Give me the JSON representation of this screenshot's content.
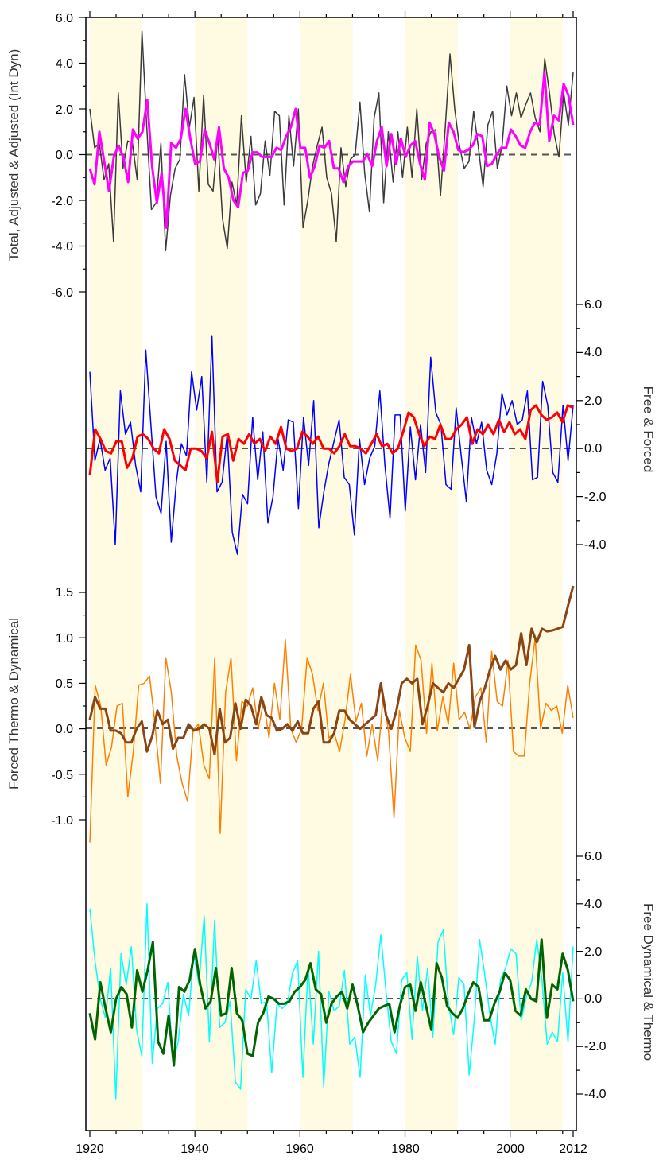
{
  "chart_data": {
    "type": "line",
    "x_ticks": [
      "1920",
      "1940",
      "1960",
      "1980",
      "2000",
      "2012"
    ],
    "x_range": [
      1919,
      2012
    ],
    "shaded_decades": [
      [
        1920,
        1930
      ],
      [
        1940,
        1950
      ],
      [
        1960,
        1970
      ],
      [
        1980,
        1990
      ],
      [
        2000,
        2010
      ]
    ],
    "colors": {
      "shade": "#fffbe3",
      "zero_line": "#555555",
      "total": "#3a3a3a",
      "adjusted": "#ff00ff",
      "free": "#0000ff",
      "forced": "#ff0000",
      "forced_thermo": "#8b4513",
      "forced_dynamical": "#ff8000",
      "free_dynamical": "#00ffff",
      "free_thermo": "#006400"
    },
    "panels": [
      {
        "ylabel": "Total, Adjusted & Adjusted (Int Dyn)",
        "side": "left",
        "ylim": [
          -6.0,
          6.0
        ],
        "tick_labels": [
          "6.0",
          "4.0",
          "2.0",
          "0.0",
          "-2.0",
          "-4.0",
          "-6.0"
        ],
        "series": [
          {
            "key": "total",
            "values": [
              2.0,
              0.3,
              0.5,
              -1.1,
              -0.4,
              -3.8,
              2.7,
              -0.6,
              0.6,
              0.5,
              -1.1,
              5.4,
              1.3,
              -2.4,
              -2.1,
              0.5,
              -4.2,
              -1.8,
              -0.6,
              -0.2,
              3.5,
              1.2,
              2.5,
              -1.6,
              2.6,
              -1.3,
              -1.6,
              0.8,
              -2.8,
              -4.1,
              -1.2,
              -2.2,
              1.7,
              -1.2,
              0.8,
              -2.2,
              -1.7,
              0.6,
              -0.9,
              1.9,
              1.7,
              -2.2,
              1.7,
              -0.5,
              2.0,
              -3.2,
              -2.0,
              -0.5,
              0.4,
              1.2,
              -1.0,
              -1.7,
              -3.8,
              0.3,
              -1.4,
              -0.2,
              0.0,
              2.3,
              -0.8,
              -2.5,
              1.6,
              2.7,
              -2.1,
              1.0,
              -1.2,
              1.0,
              -1.0,
              1.2,
              -1.0,
              2.0,
              -1.1,
              0.5,
              1.0,
              1.1,
              -1.8,
              1.2,
              4.4,
              2.0,
              0.4,
              -0.6,
              -0.3,
              1.9,
              0.3,
              -1.4,
              1.3,
              1.9,
              -0.6,
              0.4,
              3.0,
              1.7,
              2.7,
              1.6,
              2.2,
              2.7,
              1.6,
              1.0,
              4.2,
              2.7,
              0.9,
              -0.1,
              2.7,
              1.3,
              3.6
            ]
          },
          {
            "key": "adjusted",
            "values": [
              -0.6,
              -1.3,
              1.0,
              -0.3,
              -1.6,
              -0.1,
              0.4,
              -0.1,
              -1.2,
              1.1,
              0.7,
              1.0,
              2.4,
              -0.5,
              -2.1,
              -0.8,
              -3.2,
              0.5,
              0.3,
              0.7,
              2.0,
              0.7,
              -0.4,
              -0.3,
              1.1,
              0.5,
              -0.2,
              1.2,
              -0.6,
              -1.0,
              -2.0,
              -2.3,
              -0.8,
              -0.7,
              0.1,
              0.1,
              -0.1,
              -0.1,
              -0.1,
              0.3,
              0.2,
              0.8,
              1.2,
              2.0,
              0.3,
              0.3,
              -1.0,
              -0.5,
              0.4,
              0.3,
              0.6,
              -0.6,
              -0.6,
              -1.2,
              -0.5,
              -0.3,
              -0.3,
              -0.3,
              0.0,
              -0.5,
              0.6,
              1.2,
              -0.5,
              0.9,
              -0.4,
              0.7,
              -0.1,
              0.4,
              0.6,
              -0.4,
              -1.1,
              1.4,
              0.9,
              -0.1,
              -0.7,
              1.4,
              1.0,
              0.2,
              0.1,
              0.2,
              0.4,
              0.9,
              0.8,
              -0.5,
              -0.4,
              0.0,
              0.3,
              0.3,
              1.1,
              0.8,
              0.4,
              0.3,
              1.0,
              1.4,
              1.3,
              3.6,
              0.6,
              1.7,
              1.5,
              3.1,
              2.6,
              1.3
            ]
          }
        ]
      },
      {
        "ylabel": "Free & Forced",
        "side": "right",
        "ylim": [
          -6.0,
          6.0
        ],
        "tick_labels": [
          "6.0",
          "4.0",
          "2.0",
          "0.0",
          "-2.0",
          "-4.0"
        ],
        "series": [
          {
            "key": "free",
            "values": [
              3.2,
              -0.5,
              0.4,
              -0.9,
              -0.4,
              -4.0,
              2.4,
              0.6,
              1.1,
              -0.7,
              -1.8,
              4.1,
              1.0,
              -2.0,
              -2.7,
              0.3,
              -3.9,
              -1.4,
              0.2,
              -0.3,
              3.2,
              1.6,
              3.0,
              -1.4,
              4.7,
              -1.8,
              -1.4,
              0.6,
              -3.5,
              -4.4,
              -1.9,
              -2.3,
              1.3,
              -1.3,
              0.7,
              -3.1,
              -2.0,
              0.4,
              -0.9,
              1.2,
              1.1,
              -2.5,
              1.3,
              -0.7,
              2.0,
              -3.3,
              -1.8,
              -0.6,
              0.3,
              1.2,
              -1.2,
              -1.5,
              -3.6,
              0.4,
              -1.5,
              -0.4,
              0.1,
              2.4,
              -0.7,
              -2.9,
              1.4,
              1.4,
              -2.6,
              0.9,
              -1.3,
              1.0,
              -1.0,
              3.8,
              1.5,
              1.0,
              -1.5,
              -1.7,
              1.7,
              -0.3,
              -2.2,
              1.3,
              0.2,
              1.1,
              -0.9,
              -1.5,
              -0.2,
              2.3,
              1.4,
              2.0,
              1.0,
              1.2,
              2.4,
              -1.3,
              -1.2,
              2.8,
              1.8,
              -1.0,
              -1.4,
              1.8,
              -0.5,
              1.8
            ]
          },
          {
            "key": "forced",
            "values": [
              -1.1,
              0.8,
              0.4,
              -0.1,
              -0.2,
              0.3,
              0.3,
              -0.8,
              -0.4,
              0.5,
              0.6,
              0.4,
              0.0,
              -0.2,
              0.8,
              0.4,
              -0.5,
              -0.7,
              -0.9,
              0.0,
              0.0,
              -0.1,
              -0.4,
              0.7,
              -1.4,
              0.5,
              0.6,
              -0.5,
              0.4,
              0.2,
              0.6,
              0.2,
              0.4,
              -0.1,
              0.5,
              0.2,
              0.9,
              0.0,
              -0.1,
              0.0,
              0.7,
              0.5,
              0.2,
              0.5,
              0.0,
              0.0,
              -0.2,
              0.1,
              0.6,
              0.1,
              0.1,
              0.0,
              -0.2,
              0.2,
              0.6,
              0.1,
              0.2,
              -0.2,
              0.0,
              0.7,
              1.5,
              1.3,
              0.6,
              0.1,
              0.5,
              0.4,
              1.0,
              0.4,
              0.4,
              0.8,
              1.0,
              1.3,
              0.2,
              0.8,
              0.6,
              1.0,
              0.6,
              1.2,
              0.7,
              1.1,
              0.6,
              0.8,
              0.4,
              1.6,
              1.8,
              1.4,
              1.2,
              1.3,
              1.5,
              1.1,
              1.8,
              1.7
            ]
          }
        ]
      },
      {
        "ylabel": "Forced Thermo & Dynamical",
        "side": "left",
        "ylim": [
          -1.3,
          1.8
        ],
        "tick_labels": [
          "1.5",
          "1.0",
          "0.5",
          "0.0",
          "-0.5",
          "-1.0"
        ],
        "series": [
          {
            "key": "forced_thermo",
            "values": [
              0.1,
              0.35,
              0.22,
              0.22,
              -0.02,
              -0.02,
              -0.05,
              -0.15,
              -0.15,
              0.0,
              0.08,
              -0.25,
              -0.08,
              0.2,
              0.05,
              0.1,
              -0.22,
              -0.1,
              -0.1,
              0.05,
              -0.02,
              0.0,
              0.05,
              0.0,
              -0.28,
              0.22,
              -0.15,
              -0.1,
              0.28,
              0.0,
              0.32,
              0.25,
              0.05,
              0.35,
              0.15,
              0.12,
              -0.02,
              0.0,
              0.05,
              -0.02,
              0.08,
              -0.05,
              -0.05,
              0.22,
              0.3,
              -0.15,
              -0.15,
              -0.05,
              0.2,
              0.2,
              0.1,
              0.05,
              0.0,
              0.05,
              0.1,
              0.15,
              0.5,
              0.15,
              0.0,
              0.2,
              0.5,
              0.55,
              0.5,
              0.55,
              0.05,
              0.25,
              0.5,
              0.45,
              0.4,
              0.5,
              0.45,
              0.55,
              0.65,
              0.92,
              0.02,
              0.3,
              0.45,
              0.65,
              0.8,
              0.65,
              0.75,
              0.65,
              0.7,
              1.05,
              0.7,
              1.1,
              0.95,
              1.1,
              1.07,
              1.08,
              1.1,
              1.12,
              1.35,
              1.57
            ]
          },
          {
            "key": "forced_dynamical",
            "values": [
              -1.25,
              0.48,
              0.25,
              -0.4,
              -0.2,
              0.25,
              0.28,
              -0.75,
              -0.25,
              0.48,
              0.5,
              0.58,
              0.05,
              -0.6,
              0.78,
              0.4,
              -0.3,
              -0.6,
              -0.8,
              -0.02,
              0.05,
              -0.4,
              -0.55,
              0.78,
              -1.15,
              0.4,
              0.78,
              -0.35,
              0.3,
              0.25,
              0.45,
              0.0,
              0.3,
              -0.1,
              0.5,
              0.1,
              0.98,
              0.0,
              -0.15,
              0.0,
              0.78,
              0.6,
              0.2,
              0.5,
              -0.1,
              -0.05,
              -0.25,
              0.1,
              0.6,
              0.08,
              0.28,
              -0.3,
              0.05,
              -0.35,
              0.35,
              -0.02,
              -0.98,
              0.2,
              -0.1,
              -0.25,
              0.92,
              0.75,
              -0.05,
              0.72,
              -0.02,
              0.35,
              0.05,
              0.72,
              0.1,
              0.18,
              0.0,
              0.35,
              0.45,
              -0.15,
              0.85,
              0.3,
              0.25,
              0.75,
              -0.25,
              -0.3,
              -0.3,
              0.5,
              1.0,
              0.0,
              0.28,
              0.2,
              0.25,
              -0.05,
              0.48,
              0.12
            ]
          }
        ]
      },
      {
        "ylabel": "Free Dynamical & Thermo",
        "side": "right",
        "ylim": [
          -6.0,
          6.0
        ],
        "tick_labels": [
          "6.0",
          "4.0",
          "2.0",
          "0.0",
          "-2.0",
          "-4.0"
        ],
        "series": [
          {
            "key": "free_dynamical",
            "values": [
              3.8,
              1.6,
              0.0,
              -0.8,
              1.3,
              -4.2,
              1.9,
              0.6,
              2.2,
              -1.3,
              -2.4,
              4.0,
              -2.7,
              -0.4,
              -0.2,
              0.7,
              -2.7,
              -1.8,
              0.2,
              -0.7,
              1.9,
              0.6,
              3.5,
              -1.8,
              3.3,
              -1.2,
              -1.0,
              -0.1,
              -3.5,
              -3.8,
              0.4,
              0.0,
              1.6,
              -0.2,
              -0.1,
              -3.1,
              -0.2,
              -0.4,
              -0.2,
              1.1,
              1.6,
              -3.3,
              1.4,
              -1.9,
              2.0,
              -3.7,
              0.3,
              -0.5,
              -0.3,
              1.2,
              -1.9,
              -1.6,
              -3.3,
              1.0,
              -0.7,
              0.6,
              2.7,
              0.3,
              -1.8,
              -2.3,
              0.8,
              1.1,
              -1.7,
              1.8,
              -0.5,
              1.3,
              -1.6,
              2.4,
              2.9,
              -0.2,
              -1.5,
              0.9,
              0.6,
              -3.2,
              -0.8,
              2.5,
              1.0,
              -0.7,
              -1.9,
              0.8,
              1.3,
              2.1,
              1.9,
              -0.9,
              0.1,
              0.7,
              2.5,
              0.8,
              -1.9,
              -1.4,
              -1.8,
              1.1,
              -1.8,
              2.2
            ]
          },
          {
            "key": "free_thermo",
            "values": [
              -0.6,
              -1.7,
              0.7,
              -0.4,
              -1.4,
              0.0,
              0.5,
              0.2,
              -1.2,
              1.2,
              0.3,
              1.2,
              2.4,
              -1.8,
              -2.3,
              -0.7,
              -2.8,
              0.5,
              0.3,
              0.8,
              2.1,
              0.6,
              -0.4,
              -0.1,
              1.3,
              -0.7,
              -0.6,
              1.3,
              -0.6,
              -0.9,
              -2.3,
              -2.4,
              -1.0,
              -0.6,
              0.1,
              0.0,
              -0.2,
              -0.2,
              -0.1,
              0.3,
              0.5,
              0.8,
              1.5,
              0.4,
              0.2,
              -1.0,
              -0.2,
              0.1,
              0.3,
              -0.4,
              0.6,
              -0.3,
              -1.4,
              -1.0,
              -0.7,
              -0.4,
              -0.3,
              -0.2,
              -1.4,
              -0.3,
              0.5,
              0.6,
              -0.5,
              0.7,
              -0.3,
              -1.3,
              1.5,
              0.9,
              -0.3,
              -0.6,
              -0.8,
              -0.4,
              0.2,
              0.7,
              0.5,
              -0.9,
              -0.9,
              -0.2,
              0.3,
              1.1,
              0.8,
              -0.5,
              -0.7,
              0.4,
              0.0,
              -0.1,
              2.5,
              -0.8,
              0.6,
              0.4,
              1.9,
              1.2,
              -0.1
            ]
          }
        ]
      }
    ]
  }
}
